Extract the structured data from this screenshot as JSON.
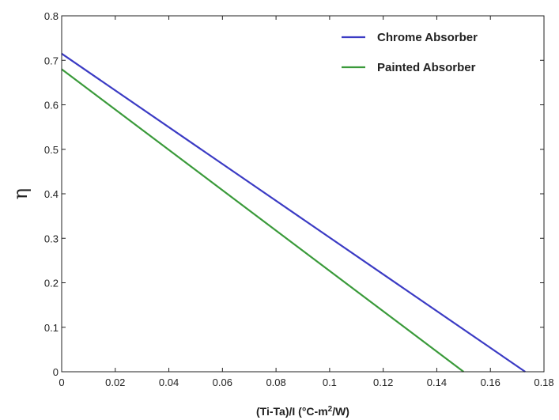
{
  "chart_data": {
    "type": "line",
    "title": "",
    "xlabel": "(Ti-Ta)/I  (°C-m²/W)",
    "ylabel": "η",
    "xlim": [
      0,
      0.18
    ],
    "ylim": [
      0,
      0.8
    ],
    "xticks": [
      0,
      0.02,
      0.04,
      0.06,
      0.08,
      0.1,
      0.12,
      0.14,
      0.16,
      0.18
    ],
    "yticks": [
      0,
      0.1,
      0.2,
      0.3,
      0.4,
      0.5,
      0.6,
      0.7,
      0.8
    ],
    "xtick_labels": [
      "0",
      "0.02",
      "0.04",
      "0.06",
      "0.08",
      "0.1",
      "0.12",
      "0.14",
      "0.16",
      "0.18"
    ],
    "ytick_labels": [
      "0",
      "0.1",
      "0.2",
      "0.3",
      "0.4",
      "0.5",
      "0.6",
      "0.7",
      "0.8"
    ],
    "grid": false,
    "legend_position": "top-right",
    "series": [
      {
        "name": "Chrome Absorber",
        "color": "#3b3bc4",
        "x": [
          0,
          0.173
        ],
        "y": [
          0.715,
          0
        ]
      },
      {
        "name": "Painted Absorber",
        "color": "#3a9a3a",
        "x": [
          0,
          0.15
        ],
        "y": [
          0.68,
          0
        ]
      }
    ]
  }
}
